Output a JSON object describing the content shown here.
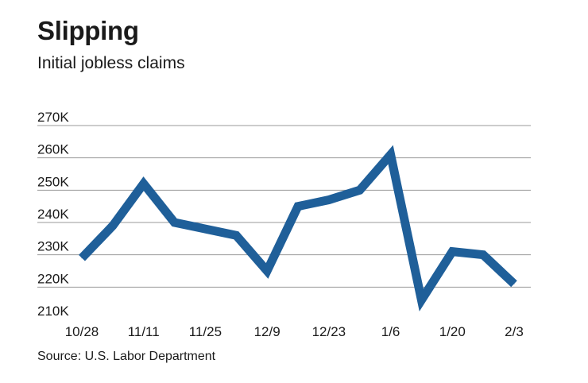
{
  "chart_data": {
    "type": "line",
    "title": "Slipping",
    "subtitle": "Initial jobless claims",
    "source": "Source: U.S. Labor Department",
    "xlabel": "",
    "ylabel": "",
    "ylim": [
      210,
      270
    ],
    "grid": true,
    "y_ticks": [
      {
        "value": 270,
        "label": "270K"
      },
      {
        "value": 260,
        "label": "260K"
      },
      {
        "value": 250,
        "label": "250K"
      },
      {
        "value": 240,
        "label": "240K"
      },
      {
        "value": 230,
        "label": "230K"
      },
      {
        "value": 220,
        "label": "220K"
      },
      {
        "value": 210,
        "label": "210K"
      }
    ],
    "x_ticks": [
      {
        "index": 0,
        "label": "10/28"
      },
      {
        "index": 2,
        "label": "11/11"
      },
      {
        "index": 4,
        "label": "11/25"
      },
      {
        "index": 6,
        "label": "12/9"
      },
      {
        "index": 8,
        "label": "12/23"
      },
      {
        "index": 10,
        "label": "1/6"
      },
      {
        "index": 12,
        "label": "1/20"
      },
      {
        "index": 14,
        "label": "2/3"
      }
    ],
    "series": [
      {
        "name": "Initial jobless claims",
        "color": "#1f5f99",
        "values": [
          229,
          239,
          252,
          240,
          238,
          236,
          225,
          245,
          247,
          250,
          261,
          216,
          231,
          230,
          221
        ]
      }
    ]
  }
}
